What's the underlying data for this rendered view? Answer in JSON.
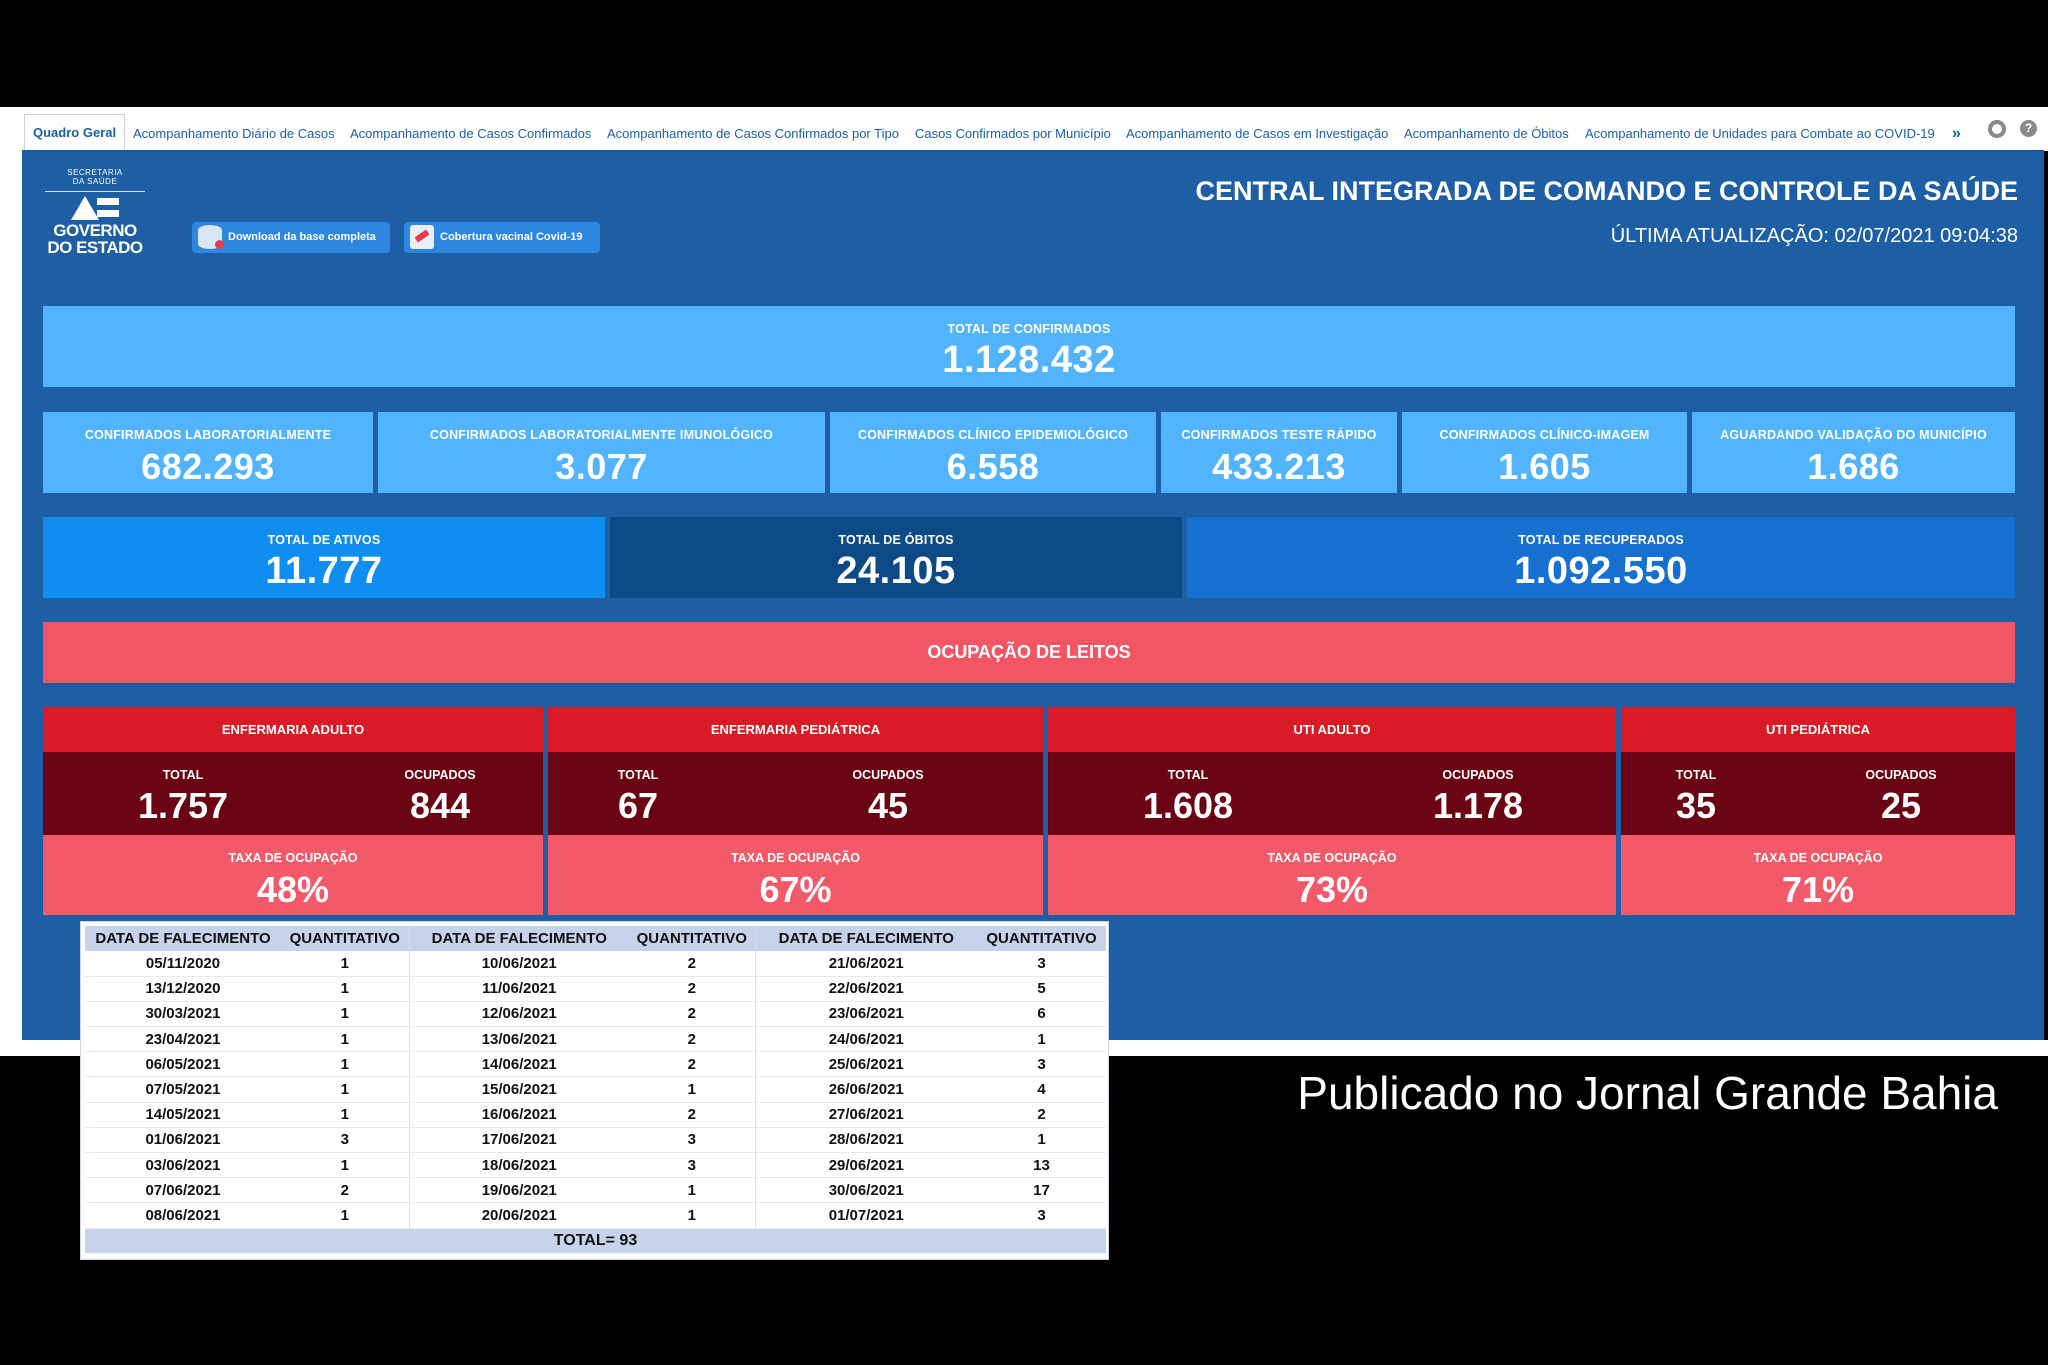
{
  "tabs": [
    {
      "label": "Quadro Geral",
      "active": true
    },
    {
      "label": "Acompanhamento Diário de Casos"
    },
    {
      "label": "Acompanhamento de Casos Confirmados"
    },
    {
      "label": "Acompanhamento de Casos Confirmados por Tipo"
    },
    {
      "label": "Casos Confirmados por Município"
    },
    {
      "label": "Acompanhamento de Casos em Investigação"
    },
    {
      "label": "Acompanhamento de Óbitos"
    },
    {
      "label": "Acompanhamento de Unidades para Combate ao COVID-19"
    }
  ],
  "tab_more": "»",
  "icons": {
    "settings": "gear-icon",
    "help": "help-icon",
    "help_glyph": "?"
  },
  "logo": {
    "line1": "SECRETARIA",
    "line2": "DA SAÚDE",
    "gov1": "GOVERNO",
    "gov2": "DO ESTADO"
  },
  "buttons": {
    "download": "Download da base completa",
    "vaccine": "Cobertura vacinal Covid-19"
  },
  "header": {
    "title": "CENTRAL INTEGRADA DE COMANDO E CONTROLE DA SAÚDE",
    "last_update": "ÚLTIMA ATUALIZAÇÃO: 02/07/2021 09:04:38"
  },
  "total_confirmed": {
    "label": "TOTAL DE CONFIRMADOS",
    "value": "1.128.432"
  },
  "confirmed_breakdown": [
    {
      "label": "CONFIRMADOS LABORATORIALMENTE",
      "value": "682.293"
    },
    {
      "label": "CONFIRMADOS LABORATORIALMENTE IMUNOLÓGICO",
      "value": "3.077"
    },
    {
      "label": "CONFIRMADOS CLÍNICO EPIDEMIOLÓGICO",
      "value": "6.558"
    },
    {
      "label": "CONFIRMADOS TESTE RÁPIDO",
      "value": "433.213"
    },
    {
      "label": "CONFIRMADOS CLÍNICO-IMAGEM",
      "value": "1.605"
    },
    {
      "label": "AGUARDANDO VALIDAÇÃO DO MUNICÍPIO",
      "value": "1.686"
    }
  ],
  "totals": [
    {
      "label": "TOTAL DE ATIVOS",
      "value": "11.777"
    },
    {
      "label": "TOTAL DE ÓBITOS",
      "value": "24.105"
    },
    {
      "label": "TOTAL DE RECUPERADOS",
      "value": "1.092.550"
    }
  ],
  "beds_title": "OCUPAÇÃO DE LEITOS",
  "beds_labels": {
    "total": "TOTAL",
    "occupied": "OCUPADOS",
    "rate": "TAXA DE OCUPAÇÃO"
  },
  "wards": [
    {
      "name": "ENFERMARIA ADULTO",
      "total": "1.757",
      "occupied": "844",
      "rate": "48%"
    },
    {
      "name": "ENFERMARIA PEDIÁTRICA",
      "total": "67",
      "occupied": "45",
      "rate": "67%"
    },
    {
      "name": "UTI ADULTO",
      "total": "1.608",
      "occupied": "1.178",
      "rate": "73%"
    },
    {
      "name": "UTI PEDIÁTRICA",
      "total": "35",
      "occupied": "25",
      "rate": "71%"
    }
  ],
  "deaths_table": {
    "headers": [
      "DATA DE FALECIMENTO",
      "QUANTITATIVO",
      "DATA DE FALECIMENTO",
      "QUANTITATIVO",
      "DATA DE FALECIMENTO",
      "QUANTITATIVO"
    ],
    "rows": [
      [
        "05/11/2020",
        "1",
        "10/06/2021",
        "2",
        "21/06/2021",
        "3"
      ],
      [
        "13/12/2020",
        "1",
        "11/06/2021",
        "2",
        "22/06/2021",
        "5"
      ],
      [
        "30/03/2021",
        "1",
        "12/06/2021",
        "2",
        "23/06/2021",
        "6"
      ],
      [
        "23/04/2021",
        "1",
        "13/06/2021",
        "2",
        "24/06/2021",
        "1"
      ],
      [
        "06/05/2021",
        "1",
        "14/06/2021",
        "2",
        "25/06/2021",
        "3"
      ],
      [
        "07/05/2021",
        "1",
        "15/06/2021",
        "1",
        "26/06/2021",
        "4"
      ],
      [
        "14/05/2021",
        "1",
        "16/06/2021",
        "2",
        "27/06/2021",
        "2"
      ],
      [
        "01/06/2021",
        "3",
        "17/06/2021",
        "3",
        "28/06/2021",
        "1"
      ],
      [
        "03/06/2021",
        "1",
        "18/06/2021",
        "3",
        "29/06/2021",
        "13"
      ],
      [
        "07/06/2021",
        "2",
        "19/06/2021",
        "1",
        "30/06/2021",
        "17"
      ],
      [
        "08/06/2021",
        "1",
        "20/06/2021",
        "1",
        "01/07/2021",
        "3"
      ]
    ],
    "total": "TOTAL= 93"
  },
  "footer_text": "Publicado no Jornal Grande Bahia",
  "colors": {
    "dashboard_bg": "#1d5ea4",
    "kpi_light": "#52b4ff",
    "active": "#0f8ef2",
    "deaths": "#0c4a85",
    "recovered": "#1670cf",
    "beds_header": "#f25664",
    "ward_header": "#d81b26",
    "ward_mid": "#6a0413",
    "ward_rate": "#f25a6a"
  }
}
